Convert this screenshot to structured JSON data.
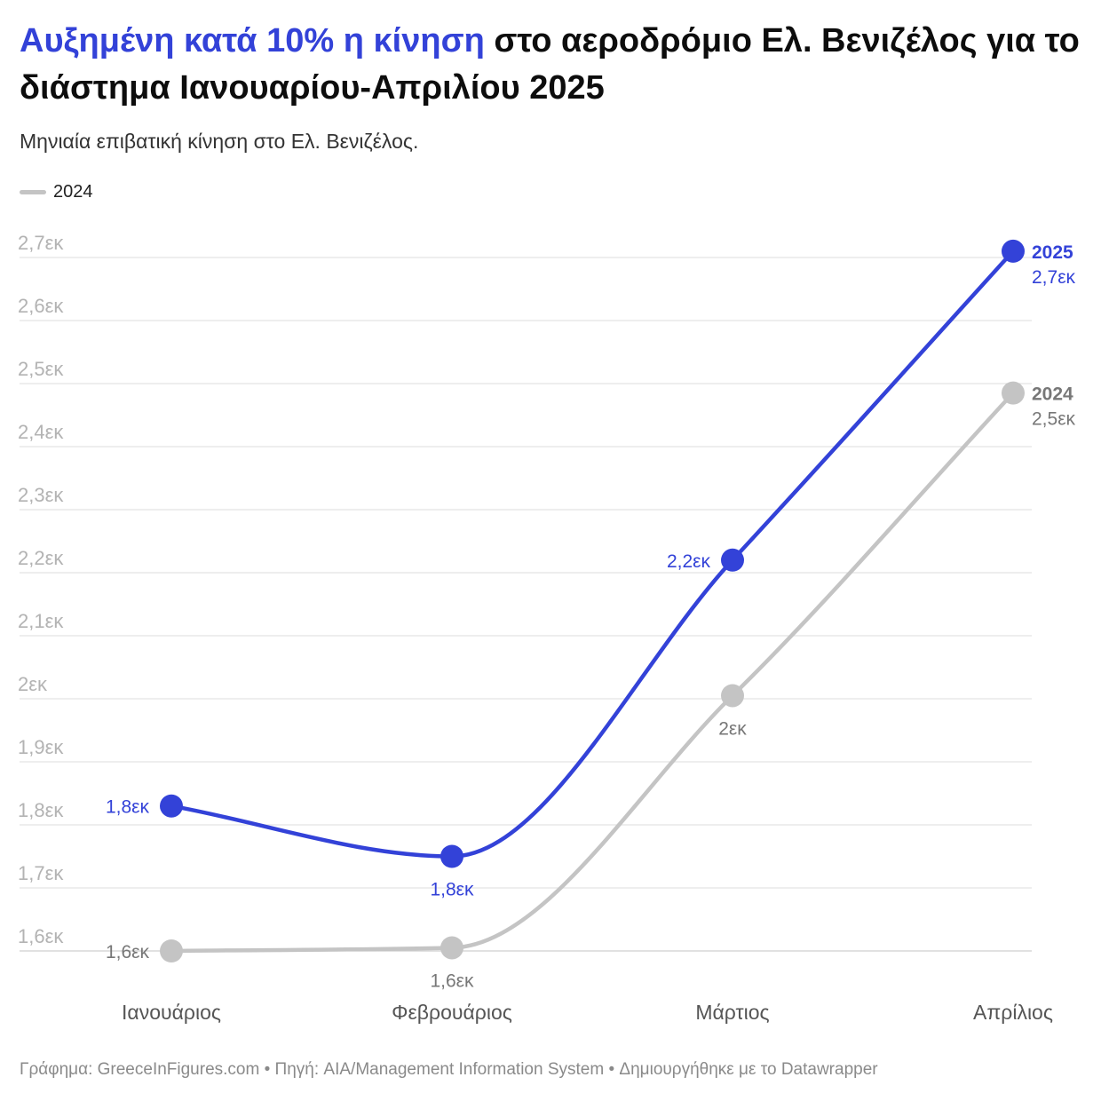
{
  "title": {
    "highlight": "Αυξημένη κατά 10% η κίνηση",
    "rest": " στο αεροδρόμιο Ελ. Βενιζέλος για το διάστημα Ιανουαρίου-Απριλίου 2025",
    "highlight_color": "#3342d8"
  },
  "subtitle": "Μηνιαία επιβατική κίνηση στο Ελ. Βενιζέλος.",
  "legend": [
    {
      "label": "2024",
      "color": "#c4c4c4"
    }
  ],
  "footer": "Γράφημα: GreeceInFigures.com • Πηγή: AIA/Management Information System • Δημιουργήθηκε με το Datawrapper",
  "chart_data": {
    "type": "line",
    "categories": [
      "Ιανουάριος",
      "Φεβρουάριος",
      "Μάρτιος",
      "Απρίλιος"
    ],
    "series": [
      {
        "name": "2025",
        "color": "#3342d8",
        "values": [
          1.83,
          1.75,
          2.22,
          2.71
        ],
        "labels": [
          "1,8εκ",
          "1,8εκ",
          "2,2εκ",
          "2,7εκ"
        ]
      },
      {
        "name": "2024",
        "color": "#c4c4c4",
        "values": [
          1.6,
          1.605,
          2.005,
          2.485
        ],
        "labels": [
          "1,6εκ",
          "1,6εκ",
          "2εκ",
          "2,5εκ"
        ]
      }
    ],
    "yticks": [
      {
        "value": 1.6,
        "label": "1,6εκ"
      },
      {
        "value": 1.7,
        "label": "1,7εκ"
      },
      {
        "value": 1.8,
        "label": "1,8εκ"
      },
      {
        "value": 1.9,
        "label": "1,9εκ"
      },
      {
        "value": 2.0,
        "label": "2εκ"
      },
      {
        "value": 2.1,
        "label": "2,1εκ"
      },
      {
        "value": 2.2,
        "label": "2,2εκ"
      },
      {
        "value": 2.3,
        "label": "2,3εκ"
      },
      {
        "value": 2.4,
        "label": "2,4εκ"
      },
      {
        "value": 2.5,
        "label": "2,5εκ"
      },
      {
        "value": 2.6,
        "label": "2,6εκ"
      },
      {
        "value": 2.7,
        "label": "2,7εκ"
      }
    ],
    "ylim": [
      1.6,
      2.7
    ],
    "grid": true,
    "legend_position": "top-left",
    "unit": "εκ"
  }
}
